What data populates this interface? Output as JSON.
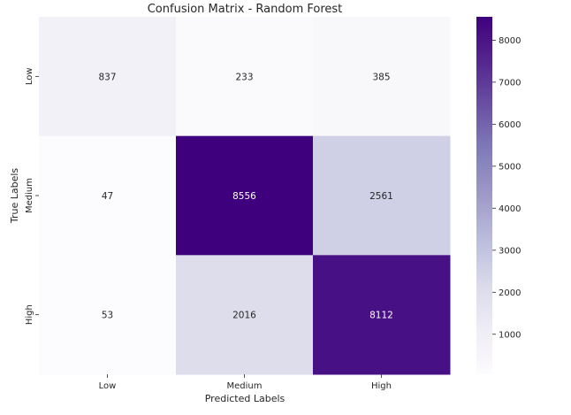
{
  "chart_data": {
    "type": "heatmap",
    "title": "Confusion Matrix - Random Forest",
    "xlabel": "Predicted Labels",
    "ylabel": "True Labels",
    "x_categories": [
      "Low",
      "Medium",
      "High"
    ],
    "y_categories": [
      "Low",
      "Medium",
      "High"
    ],
    "values": [
      [
        837,
        233,
        385
      ],
      [
        47,
        8556,
        2561
      ],
      [
        53,
        2016,
        8112
      ]
    ],
    "colorbar": {
      "range": [
        47,
        8556
      ],
      "ticks": [
        1000,
        2000,
        3000,
        4000,
        5000,
        6000,
        7000,
        8000
      ],
      "colormap": "Purples"
    }
  }
}
